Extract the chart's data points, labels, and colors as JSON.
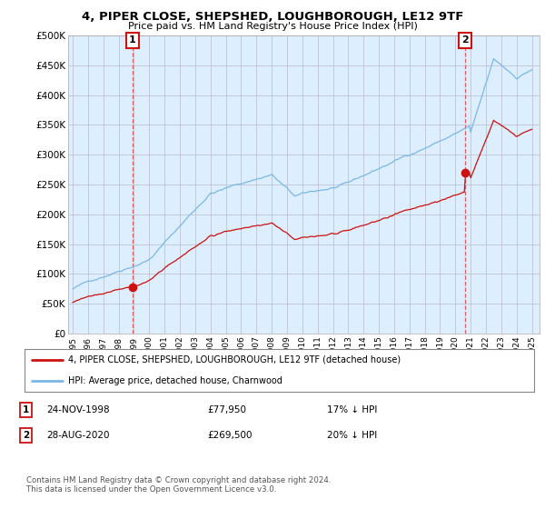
{
  "title": "4, PIPER CLOSE, SHEPSHED, LOUGHBOROUGH, LE12 9TF",
  "subtitle": "Price paid vs. HM Land Registry's House Price Index (HPI)",
  "legend_line1": "4, PIPER CLOSE, SHEPSHED, LOUGHBOROUGH, LE12 9TF (detached house)",
  "legend_line2": "HPI: Average price, detached house, Charnwood",
  "sale1_date": "24-NOV-1998",
  "sale1_price": "£77,950",
  "sale1_hpi": "17% ↓ HPI",
  "sale2_date": "28-AUG-2020",
  "sale2_price": "£269,500",
  "sale2_hpi": "20% ↓ HPI",
  "footer": "Contains HM Land Registry data © Crown copyright and database right 2024.\nThis data is licensed under the Open Government Licence v3.0.",
  "hpi_color": "#7ab8e8",
  "price_color": "#cc1111",
  "marker_color": "#cc1111",
  "vline_color": "#dd4444",
  "chart_bg": "#ddeeff",
  "sale1_x": 1998.9,
  "sale1_y": 77950,
  "sale2_x": 2020.65,
  "sale2_y": 269500,
  "ylim_min": 0,
  "ylim_max": 500000,
  "xlim_min": 1994.7,
  "xlim_max": 2025.5,
  "yticks": [
    0,
    50000,
    100000,
    150000,
    200000,
    250000,
    300000,
    350000,
    400000,
    450000,
    500000
  ],
  "ytick_labels": [
    "£0",
    "£50K",
    "£100K",
    "£150K",
    "£200K",
    "£250K",
    "£300K",
    "£350K",
    "£400K",
    "£450K",
    "£500K"
  ],
  "xtick_years": [
    1995,
    1996,
    1997,
    1998,
    1999,
    2000,
    2001,
    2002,
    2003,
    2004,
    2005,
    2006,
    2007,
    2008,
    2009,
    2010,
    2011,
    2012,
    2013,
    2014,
    2015,
    2016,
    2017,
    2018,
    2019,
    2020,
    2021,
    2022,
    2023,
    2024,
    2025
  ],
  "background_color": "#ffffff",
  "grid_color": "#bbbbcc"
}
